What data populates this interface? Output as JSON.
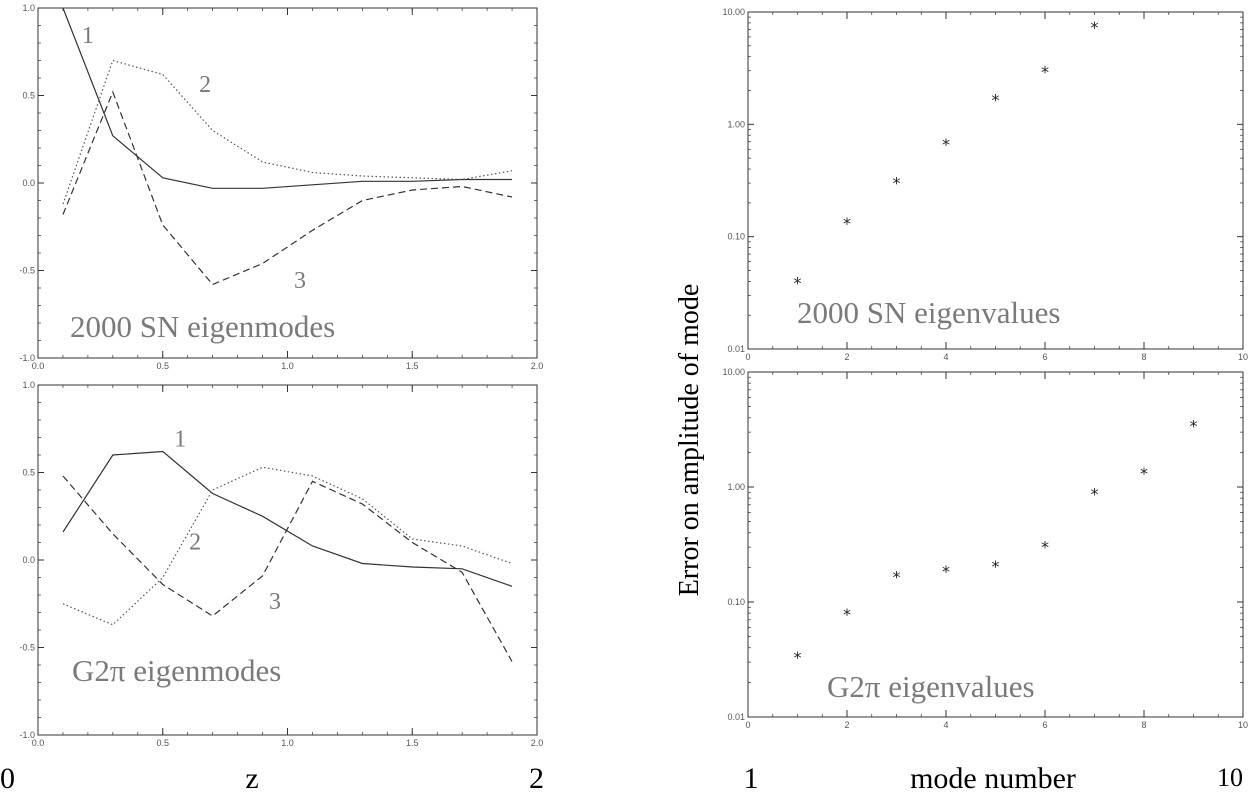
{
  "colors": {
    "frame": "#333333",
    "tick_text": "#555555",
    "inset_text": "#7a7a7a",
    "series": "#333333",
    "marker": "#222222"
  },
  "outer_labels": {
    "left_x_start": "0",
    "left_x_label": "z",
    "left_x_end": "2",
    "right_x_start": "1",
    "right_x_label": "mode number",
    "right_x_end": "10",
    "right_y_label": "Error on amplitude of mode"
  },
  "chart_data": [
    {
      "id": "sn-eigenmodes",
      "type": "line",
      "title": "2000 SN eigenmodes",
      "xlabel": "",
      "ylabel": "",
      "xlim": [
        0.0,
        2.0
      ],
      "ylim": [
        -1.0,
        1.0
      ],
      "xscale": "linear",
      "yscale": "linear",
      "grid": false,
      "xticks": [
        "0.0",
        "0.5",
        "1.0",
        "1.5",
        "2.0"
      ],
      "yticks": [
        "-1.0",
        "-0.5",
        "0.0",
        "0.5",
        "1.0"
      ],
      "x": [
        0.1,
        0.3,
        0.5,
        0.7,
        0.9,
        1.1,
        1.3,
        1.5,
        1.7,
        1.9
      ],
      "series": [
        {
          "name": "1",
          "style": "solid",
          "values": [
            1.0,
            0.27,
            0.03,
            -0.03,
            -0.03,
            -0.01,
            0.01,
            0.01,
            0.02,
            0.02
          ],
          "label_at": [
            0.2,
            0.8
          ]
        },
        {
          "name": "2",
          "style": "dotted",
          "values": [
            -0.12,
            0.7,
            0.62,
            0.3,
            0.12,
            0.06,
            0.04,
            0.03,
            0.02,
            0.07
          ],
          "label_at": [
            0.67,
            0.52
          ]
        },
        {
          "name": "3",
          "style": "dashed",
          "values": [
            -0.18,
            0.52,
            -0.24,
            -0.58,
            -0.46,
            -0.27,
            -0.1,
            -0.04,
            -0.02,
            -0.08
          ],
          "label_at": [
            1.05,
            -0.6
          ]
        }
      ]
    },
    {
      "id": "g2pi-eigenmodes",
      "type": "line",
      "title": "G2π eigenmodes",
      "xlabel": "",
      "ylabel": "",
      "xlim": [
        0.0,
        2.0
      ],
      "ylim": [
        -1.0,
        1.0
      ],
      "xscale": "linear",
      "yscale": "linear",
      "grid": false,
      "xticks": [
        "0.0",
        "0.5",
        "1.0",
        "1.5",
        "2.0"
      ],
      "yticks": [
        "-1.0",
        "-0.5",
        "0.0",
        "0.5",
        "1.0"
      ],
      "x": [
        0.1,
        0.3,
        0.5,
        0.7,
        0.9,
        1.1,
        1.3,
        1.5,
        1.7,
        1.9
      ],
      "series": [
        {
          "name": "1",
          "style": "solid",
          "values": [
            0.16,
            0.6,
            0.62,
            0.38,
            0.25,
            0.08,
            -0.02,
            -0.04,
            -0.05,
            -0.15
          ],
          "label_at": [
            0.57,
            0.65
          ]
        },
        {
          "name": "2",
          "style": "dotted",
          "values": [
            -0.25,
            -0.37,
            -0.1,
            0.4,
            0.53,
            0.48,
            0.35,
            0.12,
            0.08,
            -0.02
          ],
          "label_at": [
            0.63,
            0.06
          ]
        },
        {
          "name": "3",
          "style": "dashed",
          "values": [
            0.48,
            0.15,
            -0.14,
            -0.32,
            -0.09,
            0.45,
            0.32,
            0.1,
            -0.07,
            -0.58
          ],
          "label_at": [
            0.95,
            -0.28
          ]
        }
      ]
    },
    {
      "id": "sn-eigenvalues",
      "type": "scatter",
      "title": "2000 SN eigenvalues",
      "xlabel": "",
      "ylabel": "",
      "xlim": [
        0,
        10
      ],
      "ylim": [
        0.01,
        10.0
      ],
      "xscale": "linear",
      "yscale": "log",
      "grid": false,
      "xticks": [
        "0",
        "2",
        "4",
        "6",
        "8",
        "10"
      ],
      "yticks": [
        "0.01",
        "0.10",
        "1.00",
        "10.00"
      ],
      "marker": "*",
      "x": [
        1,
        2,
        3,
        4,
        5,
        6,
        7
      ],
      "y": [
        0.04,
        0.135,
        0.31,
        0.68,
        1.7,
        3.0,
        7.5
      ]
    },
    {
      "id": "g2pi-eigenvalues",
      "type": "scatter",
      "title": "G2π eigenvalues",
      "xlabel": "",
      "ylabel": "",
      "xlim": [
        0,
        10
      ],
      "ylim": [
        0.01,
        10.0
      ],
      "xscale": "linear",
      "yscale": "log",
      "grid": false,
      "xticks": [
        "0",
        "2",
        "4",
        "6",
        "8",
        "10"
      ],
      "yticks": [
        "0.01",
        "0.10",
        "1.00",
        "10.00"
      ],
      "marker": "*",
      "x": [
        1,
        2,
        3,
        4,
        5,
        6,
        7,
        8,
        9
      ],
      "y": [
        0.034,
        0.08,
        0.17,
        0.19,
        0.21,
        0.31,
        0.9,
        1.35,
        3.5
      ]
    }
  ]
}
